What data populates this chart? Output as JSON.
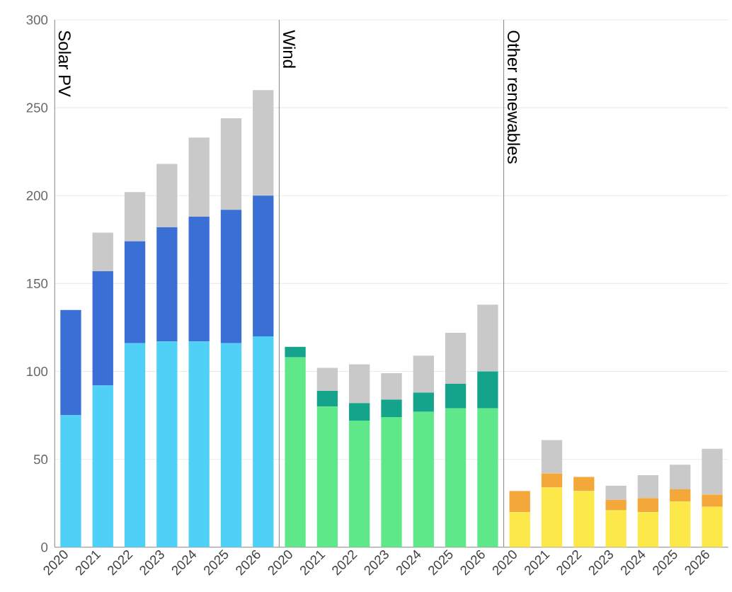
{
  "chart_data": [
    {
      "type": "bar",
      "title": "Solar PV",
      "stacked": true,
      "categories": [
        "2020",
        "2021",
        "2022",
        "2023",
        "2024",
        "2025",
        "2026"
      ],
      "ylim": [
        0,
        300
      ],
      "yticks": [
        0,
        50,
        100,
        150,
        200,
        250,
        300
      ],
      "grid": "y",
      "series": [
        {
          "color": "#4fd0f7",
          "values": [
            75,
            92,
            116,
            117,
            117,
            116,
            120
          ]
        },
        {
          "color": "#3a6fd5",
          "values": [
            60,
            65,
            58,
            65,
            71,
            76,
            80
          ]
        },
        {
          "color": "#c9c9c9",
          "values": [
            0,
            22,
            28,
            36,
            45,
            52,
            60
          ]
        }
      ]
    },
    {
      "type": "bar",
      "title": "Wind",
      "stacked": true,
      "categories": [
        "2020",
        "2021",
        "2022",
        "2023",
        "2024",
        "2025",
        "2026"
      ],
      "ylim": [
        0,
        300
      ],
      "yticks": [
        0,
        50,
        100,
        150,
        200,
        250,
        300
      ],
      "grid": "y",
      "tick_labels": "x",
      "series": [
        {
          "color": "#5ee88a",
          "values": [
            108,
            80,
            72,
            74,
            77,
            79,
            79
          ]
        },
        {
          "color": "#14a38b",
          "values": [
            6,
            9,
            10,
            10,
            11,
            14,
            21
          ]
        },
        {
          "color": "#c9c9c9",
          "values": [
            0,
            13,
            22,
            15,
            21,
            29,
            38
          ]
        }
      ]
    },
    {
      "type": "bar",
      "title": "Other renewables",
      "stacked": true,
      "categories": [
        "2020",
        "2021",
        "2022",
        "2023",
        "2024",
        "2025",
        "2026"
      ],
      "ylim": [
        0,
        300
      ],
      "yticks": [
        0,
        50,
        100,
        150,
        200,
        250,
        300
      ],
      "grid": "y",
      "tick_labels": "x",
      "series": [
        {
          "color": "#fde84a",
          "values": [
            20,
            34,
            32,
            21,
            20,
            26,
            23
          ]
        },
        {
          "color": "#f5a83a",
          "values": [
            12,
            8,
            8,
            6,
            8,
            7,
            7
          ]
        },
        {
          "color": "#c9c9c9",
          "values": [
            0,
            19,
            0,
            8,
            13,
            14,
            26
          ]
        }
      ]
    }
  ]
}
